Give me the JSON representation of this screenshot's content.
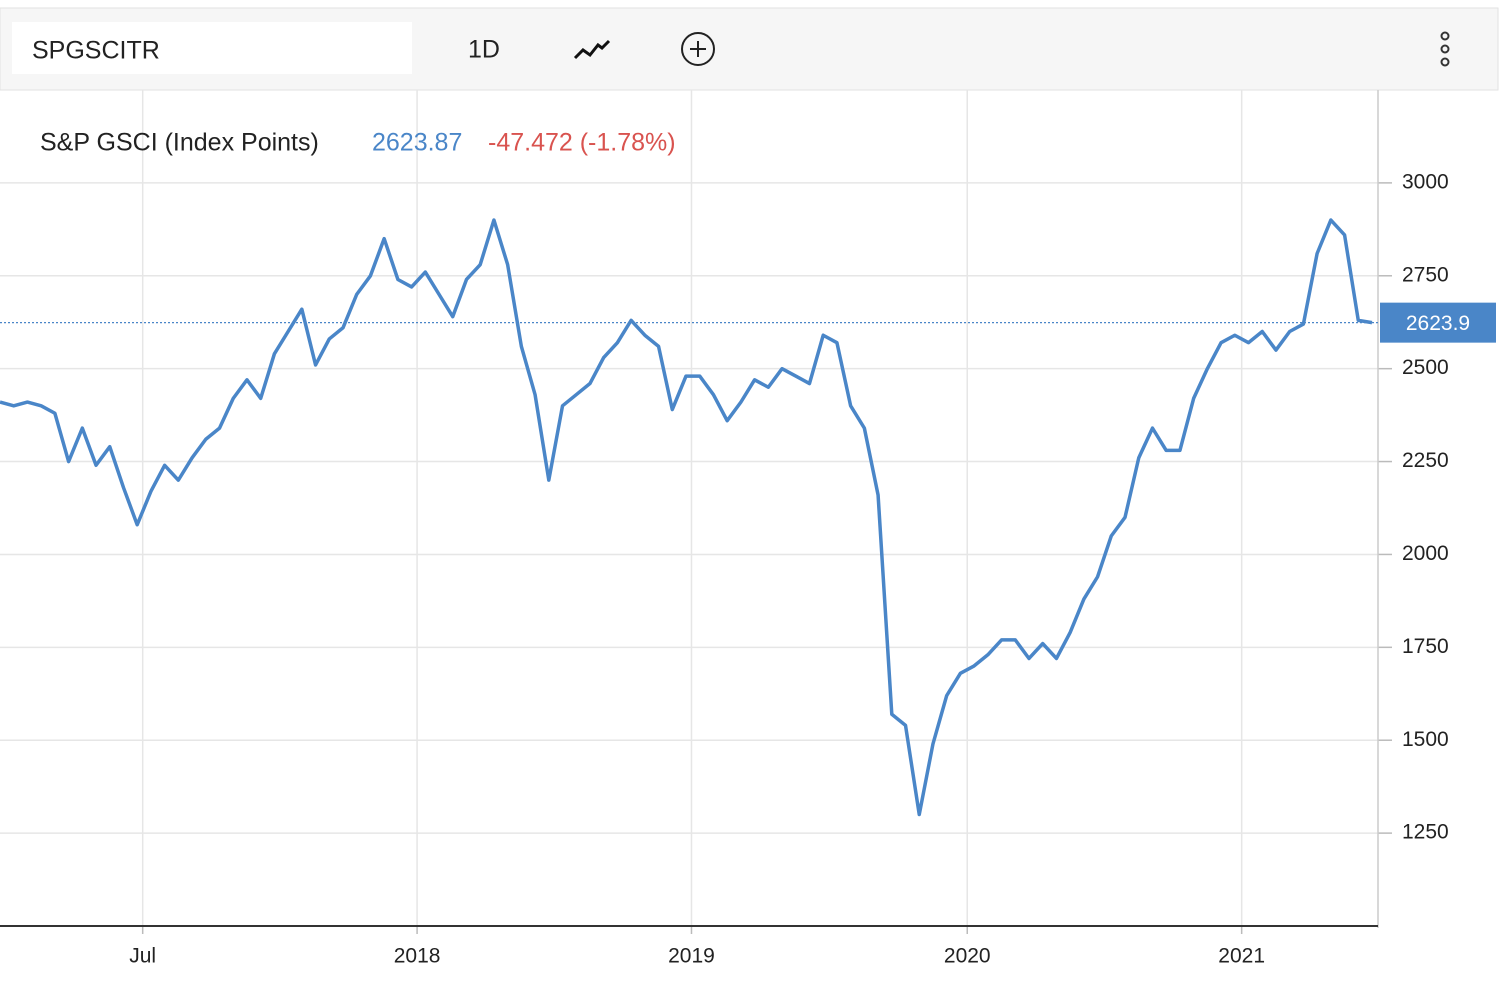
{
  "toolbar": {
    "symbol": "SPGSCITR",
    "interval": "1D"
  },
  "chart_data": {
    "type": "line",
    "title": "S&P GSCI (Index Points)",
    "last_value": 2623.87,
    "change_label": "-47.472 (-1.78%)",
    "last_value_label": "2623.9",
    "series": [
      {
        "name": "S&P GSCI",
        "color": "#4a86c8",
        "values": [
          2410,
          2400,
          2410,
          2400,
          2380,
          2250,
          2340,
          2240,
          2290,
          2180,
          2080,
          2170,
          2240,
          2200,
          2260,
          2310,
          2340,
          2420,
          2470,
          2420,
          2540,
          2600,
          2660,
          2510,
          2580,
          2610,
          2700,
          2750,
          2850,
          2740,
          2720,
          2760,
          2700,
          2640,
          2740,
          2780,
          2900,
          2780,
          2560,
          2430,
          2200,
          2400,
          2430,
          2460,
          2530,
          2570,
          2630,
          2590,
          2560,
          2390,
          2480,
          2480,
          2430,
          2360,
          2410,
          2470,
          2450,
          2500,
          2480,
          2460,
          2590,
          2570,
          2400,
          2340,
          2160,
          1570,
          1540,
          1300,
          1490,
          1620,
          1680,
          1700,
          1730,
          1770,
          1770,
          1720,
          1760,
          1720,
          1790,
          1880,
          1940,
          2050,
          2100,
          2260,
          2340,
          2280,
          2280,
          2420,
          2500,
          2570,
          2590,
          2570,
          2600,
          2550,
          2600,
          2620,
          2810,
          2900,
          2860,
          2630,
          2624
        ]
      }
    ],
    "xlim": [
      0,
      100
    ],
    "xticks": [
      {
        "value": 10.4,
        "label": "Jul"
      },
      {
        "value": 30.4,
        "label": "2018"
      },
      {
        "value": 50.4,
        "label": "2019"
      },
      {
        "value": 70.5,
        "label": "2020"
      },
      {
        "value": 90.5,
        "label": "2021"
      }
    ],
    "ylim": [
      1000,
      3250
    ],
    "yticks": [
      1250,
      1500,
      1750,
      2000,
      2250,
      2500,
      2750,
      3000
    ],
    "grid": true
  }
}
